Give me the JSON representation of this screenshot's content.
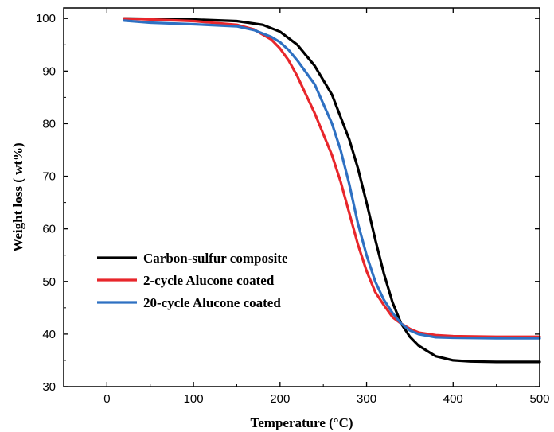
{
  "chart_data": {
    "type": "line",
    "xlabel": "Temperature (°C)",
    "ylabel": "Weight loss ( wt%)",
    "xlim": [
      -50,
      500
    ],
    "ylim": [
      30,
      102
    ],
    "xticks": [
      0,
      100,
      200,
      300,
      400,
      500
    ],
    "yticks": [
      30,
      40,
      50,
      60,
      70,
      80,
      90,
      100
    ],
    "grid": false,
    "legend_position": "lower-left",
    "series": [
      {
        "name": "Carbon-sulfur composite",
        "color": "#000000",
        "x": [
          20,
          100,
          150,
          180,
          200,
          220,
          240,
          260,
          280,
          290,
          300,
          310,
          320,
          330,
          340,
          350,
          360,
          380,
          400,
          420,
          450,
          500
        ],
        "y": [
          100,
          99.8,
          99.5,
          98.8,
          97.5,
          95,
          91,
          85.5,
          77,
          71.5,
          65,
          58,
          51.5,
          46,
          42,
          39.5,
          37.8,
          35.8,
          35,
          34.8,
          34.7,
          34.7
        ]
      },
      {
        "name": "2-cycle Alucone coated",
        "color": "#e8262b",
        "x": [
          20,
          100,
          150,
          170,
          190,
          200,
          210,
          220,
          240,
          260,
          270,
          280,
          290,
          300,
          310,
          320,
          330,
          340,
          350,
          360,
          380,
          400,
          450,
          500
        ],
        "y": [
          100,
          99.5,
          98.8,
          97.9,
          96,
          94.3,
          92,
          89,
          82,
          74,
          69,
          63,
          57,
          52,
          48,
          45.5,
          43.2,
          42,
          41,
          40.3,
          39.8,
          39.6,
          39.5,
          39.5
        ]
      },
      {
        "name": "20-cycle Alucone coated",
        "color": "#2e70c2",
        "x": [
          20,
          50,
          100,
          150,
          170,
          190,
          200,
          210,
          220,
          240,
          260,
          270,
          280,
          290,
          300,
          310,
          320,
          330,
          340,
          350,
          360,
          380,
          400,
          450,
          500
        ],
        "y": [
          99.6,
          99.2,
          98.9,
          98.5,
          97.8,
          96.5,
          95.5,
          94,
          92,
          87.5,
          80,
          75,
          68.5,
          61,
          55,
          50,
          46.5,
          44,
          42,
          40.7,
          40,
          39.4,
          39.3,
          39.2,
          39.2
        ]
      }
    ]
  }
}
